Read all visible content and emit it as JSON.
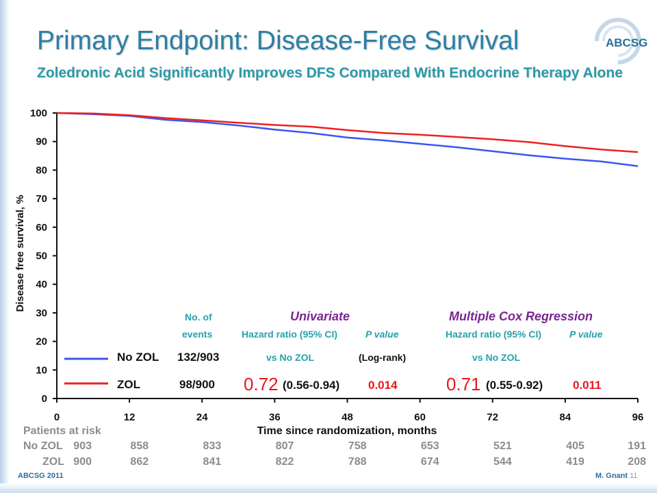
{
  "slide": {
    "title": "Primary Endpoint: Disease-Free Survival",
    "subtitle": "Zoledronic Acid Significantly Improves DFS Compared With Endocrine Therapy Alone",
    "logo_text": "ABCSG",
    "footer_left": "ABCSG 2011",
    "footer_right": "M. Gnant",
    "page_number": "11"
  },
  "colors": {
    "no_zol": "#3b55f0",
    "zol": "#ee2020",
    "title": "#2a7fa6",
    "teal": "#25a1ad",
    "purple": "#7a2590"
  },
  "chart_data": {
    "type": "line",
    "ylabel": "Disease free survival, %",
    "xlabel": "Time since randomization, months",
    "xlim": [
      0,
      96
    ],
    "ylim": [
      0,
      100
    ],
    "xticks": [
      0,
      12,
      24,
      36,
      48,
      60,
      72,
      84,
      96
    ],
    "yticks": [
      0,
      10,
      20,
      30,
      40,
      50,
      60,
      70,
      80,
      90,
      100
    ],
    "series": [
      {
        "name": "No ZOL",
        "color": "#3b55f0",
        "x": [
          0,
          6,
          12,
          18,
          24,
          30,
          36,
          42,
          48,
          54,
          60,
          66,
          72,
          78,
          84,
          90,
          96
        ],
        "y": [
          100,
          99.6,
          99.0,
          97.6,
          96.8,
          95.6,
          94.2,
          93.0,
          91.4,
          90.4,
          89.2,
          88.0,
          86.6,
          85.2,
          84.0,
          83.0,
          81.4
        ]
      },
      {
        "name": "ZOL",
        "color": "#ee2020",
        "x": [
          0,
          6,
          12,
          18,
          24,
          30,
          36,
          42,
          48,
          54,
          60,
          66,
          72,
          78,
          84,
          90,
          96
        ],
        "y": [
          100,
          99.8,
          99.2,
          98.2,
          97.4,
          96.6,
          95.8,
          95.2,
          94.0,
          93.0,
          92.4,
          91.6,
          90.8,
          89.8,
          88.4,
          87.2,
          86.3
        ]
      }
    ]
  },
  "table": {
    "h_events": [
      "No. of",
      "events"
    ],
    "h_univariate": "Univariate",
    "h_cox": "Multiple Cox Regression",
    "h_hr": "Hazard ratio (95% CI)",
    "h_p": "P value",
    "row1": {
      "label": "No ZOL",
      "events": "132/903",
      "hr_ref": "vs No ZOL",
      "p_note": "(Log-rank)",
      "cox_ref": "vs No ZOL"
    },
    "row2": {
      "label": "ZOL",
      "events": "98/900",
      "hr": "0.72",
      "ci": "(0.56-0.94)",
      "p": "0.014",
      "cox_hr": "0.71",
      "cox_ci": "(0.55-0.92)",
      "cox_p": "0.011"
    }
  },
  "risk": {
    "title": "Patients at risk",
    "rows": [
      {
        "label": "No ZOL",
        "values": [
          "903",
          "858",
          "833",
          "807",
          "758",
          "653",
          "521",
          "405",
          "191"
        ]
      },
      {
        "label": "ZOL",
        "values": [
          "900",
          "862",
          "841",
          "822",
          "788",
          "674",
          "544",
          "419",
          "208"
        ]
      }
    ]
  }
}
